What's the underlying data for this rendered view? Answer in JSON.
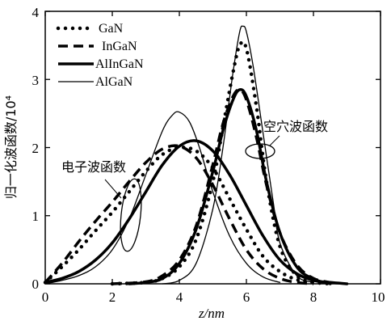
{
  "chart_data": {
    "type": "line",
    "xlabel": "z/nm",
    "ylabel": "归一化波函数/10⁴",
    "xlim": [
      0,
      10
    ],
    "ylim": [
      0,
      4
    ],
    "x_ticks": [
      "0",
      "2",
      "4",
      "6",
      "8",
      "10"
    ],
    "y_ticks": [
      "0",
      "1",
      "2",
      "3",
      "4"
    ],
    "legend_position": "top-left",
    "annotations": [
      "电子波函数",
      "空穴波函数"
    ],
    "series": [
      {
        "name": "GaN",
        "style": "dotted",
        "group": "electron",
        "x": [
          0,
          0.5,
          1.0,
          1.5,
          2.0,
          2.5,
          3.0,
          3.5,
          4.0,
          4.5,
          5.0,
          5.5,
          6.0,
          6.5,
          7.0,
          7.5,
          8.0,
          8.5
        ],
        "y": [
          0.02,
          0.25,
          0.5,
          0.78,
          1.05,
          1.35,
          1.65,
          1.9,
          2.0,
          1.95,
          1.7,
          1.25,
          0.8,
          0.4,
          0.18,
          0.06,
          0.02,
          0.0
        ]
      },
      {
        "name": "GaN",
        "style": "dotted",
        "group": "hole",
        "x": [
          2.0,
          3.0,
          3.5,
          4.0,
          4.5,
          5.0,
          5.3,
          5.6,
          5.8,
          6.0,
          6.3,
          6.6,
          7.0,
          7.5,
          8.0
        ],
        "y": [
          0.0,
          0.02,
          0.08,
          0.25,
          0.65,
          1.5,
          2.3,
          3.1,
          3.5,
          3.45,
          2.6,
          1.5,
          0.55,
          0.12,
          0.02
        ]
      },
      {
        "name": "InGaN",
        "style": "dashed",
        "group": "electron",
        "x": [
          0,
          0.5,
          1.0,
          1.5,
          2.0,
          2.5,
          3.0,
          3.5,
          4.0,
          4.5,
          5.0,
          5.5,
          6.0,
          6.5,
          7.0,
          7.5,
          8.0
        ],
        "y": [
          0.02,
          0.3,
          0.62,
          0.92,
          1.2,
          1.5,
          1.78,
          1.98,
          2.02,
          1.85,
          1.45,
          0.95,
          0.5,
          0.22,
          0.08,
          0.02,
          0.0
        ]
      },
      {
        "name": "InGaN",
        "style": "dashed",
        "group": "hole",
        "x": [
          2.0,
          3.0,
          3.5,
          4.0,
          4.5,
          5.0,
          5.3,
          5.6,
          5.8,
          6.0,
          6.3,
          6.6,
          7.0,
          7.5,
          8.0,
          8.5
        ],
        "y": [
          0.0,
          0.03,
          0.12,
          0.35,
          0.85,
          1.75,
          2.35,
          2.75,
          2.85,
          2.7,
          2.15,
          1.45,
          0.75,
          0.28,
          0.08,
          0.02
        ]
      },
      {
        "name": "AlInGaN",
        "style": "thick",
        "group": "electron",
        "x": [
          0,
          0.5,
          1.0,
          1.5,
          2.0,
          2.5,
          3.0,
          3.5,
          4.0,
          4.5,
          5.0,
          5.5,
          6.0,
          6.5,
          7.0,
          7.5,
          8.0,
          8.5,
          9.0
        ],
        "y": [
          0.02,
          0.08,
          0.18,
          0.35,
          0.6,
          0.95,
          1.35,
          1.75,
          2.02,
          2.1,
          1.95,
          1.6,
          1.15,
          0.7,
          0.35,
          0.15,
          0.05,
          0.02,
          0.0
        ]
      },
      {
        "name": "AlInGaN",
        "style": "thick",
        "group": "hole",
        "x": [
          2.5,
          3.0,
          3.5,
          4.0,
          4.5,
          5.0,
          5.3,
          5.6,
          5.8,
          6.0,
          6.3,
          6.6,
          7.0,
          7.5,
          8.0,
          8.5
        ],
        "y": [
          0.0,
          0.02,
          0.08,
          0.3,
          0.8,
          1.65,
          2.25,
          2.7,
          2.85,
          2.75,
          2.25,
          1.5,
          0.75,
          0.25,
          0.07,
          0.0
        ]
      },
      {
        "name": "AlGaN",
        "style": "thin",
        "group": "electron",
        "x": [
          0,
          0.5,
          1.0,
          1.5,
          2.0,
          2.5,
          3.0,
          3.5,
          3.8,
          4.0,
          4.3,
          4.6,
          5.0,
          5.5,
          6.0,
          6.5,
          7.0
        ],
        "y": [
          0.0,
          0.05,
          0.12,
          0.25,
          0.5,
          0.95,
          1.6,
          2.25,
          2.48,
          2.52,
          2.38,
          2.0,
          1.35,
          0.7,
          0.3,
          0.1,
          0.02
        ]
      },
      {
        "name": "AlGaN",
        "style": "thin",
        "group": "hole",
        "x": [
          3.5,
          4.0,
          4.5,
          5.0,
          5.3,
          5.6,
          5.8,
          5.9,
          6.0,
          6.2,
          6.5,
          6.8,
          7.0,
          7.5,
          8.0
        ],
        "y": [
          0.0,
          0.05,
          0.3,
          1.1,
          2.0,
          3.1,
          3.7,
          3.78,
          3.7,
          3.2,
          2.2,
          1.2,
          0.6,
          0.12,
          0.02
        ]
      }
    ]
  }
}
